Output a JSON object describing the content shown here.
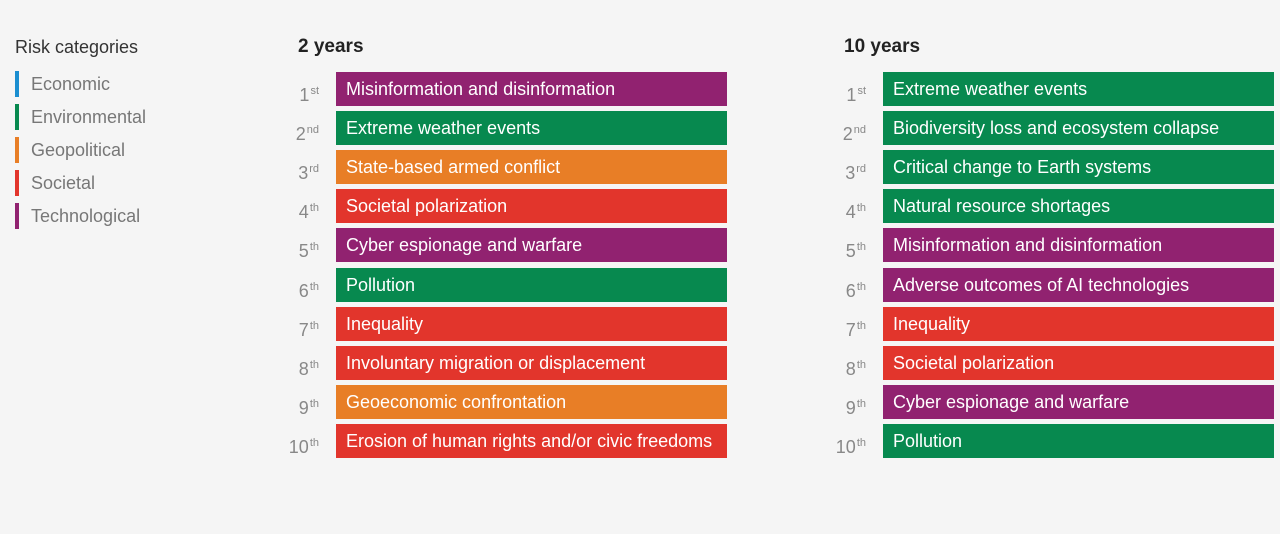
{
  "legend": {
    "title": "Risk categories",
    "categories": [
      {
        "name": "Economic",
        "color": "#1b8ed0"
      },
      {
        "name": "Environmental",
        "color": "#07894f"
      },
      {
        "name": "Geopolitical",
        "color": "#e87e26"
      },
      {
        "name": "Societal",
        "color": "#e2352c"
      },
      {
        "name": "Technological",
        "color": "#912270"
      }
    ]
  },
  "columns": [
    {
      "title": "2 years",
      "items": [
        {
          "rank": "1",
          "suffix": "st",
          "label": "Misinformation and disinformation",
          "category": "Technological"
        },
        {
          "rank": "2",
          "suffix": "nd",
          "label": "Extreme weather events",
          "category": "Environmental"
        },
        {
          "rank": "3",
          "suffix": "rd",
          "label": "State-based armed conflict",
          "category": "Geopolitical"
        },
        {
          "rank": "4",
          "suffix": "th",
          "label": "Societal polarization",
          "category": "Societal"
        },
        {
          "rank": "5",
          "suffix": "th",
          "label": "Cyber espionage and warfare",
          "category": "Technological"
        },
        {
          "rank": "6",
          "suffix": "th",
          "label": "Pollution",
          "category": "Environmental"
        },
        {
          "rank": "7",
          "suffix": "th",
          "label": "Inequality",
          "category": "Societal"
        },
        {
          "rank": "8",
          "suffix": "th",
          "label": "Involuntary migration or displacement",
          "category": "Societal"
        },
        {
          "rank": "9",
          "suffix": "th",
          "label": "Geoeconomic confrontation",
          "category": "Geopolitical"
        },
        {
          "rank": "10",
          "suffix": "th",
          "label": "Erosion of human rights and/or civic freedoms",
          "category": "Societal"
        }
      ]
    },
    {
      "title": "10 years",
      "items": [
        {
          "rank": "1",
          "suffix": "st",
          "label": "Extreme weather events",
          "category": "Environmental"
        },
        {
          "rank": "2",
          "suffix": "nd",
          "label": "Biodiversity loss and ecosystem collapse",
          "category": "Environmental"
        },
        {
          "rank": "3",
          "suffix": "rd",
          "label": "Critical change to Earth systems",
          "category": "Environmental"
        },
        {
          "rank": "4",
          "suffix": "th",
          "label": "Natural resource shortages",
          "category": "Environmental"
        },
        {
          "rank": "5",
          "suffix": "th",
          "label": "Misinformation and disinformation",
          "category": "Technological"
        },
        {
          "rank": "6",
          "suffix": "th",
          "label": "Adverse outcomes of AI technologies",
          "category": "Technological"
        },
        {
          "rank": "7",
          "suffix": "th",
          "label": "Inequality",
          "category": "Societal"
        },
        {
          "rank": "8",
          "suffix": "th",
          "label": "Societal polarization",
          "category": "Societal"
        },
        {
          "rank": "9",
          "suffix": "th",
          "label": "Cyber espionage and warfare",
          "category": "Technological"
        },
        {
          "rank": "10",
          "suffix": "th",
          "label": "Pollution",
          "category": "Environmental"
        }
      ]
    }
  ]
}
